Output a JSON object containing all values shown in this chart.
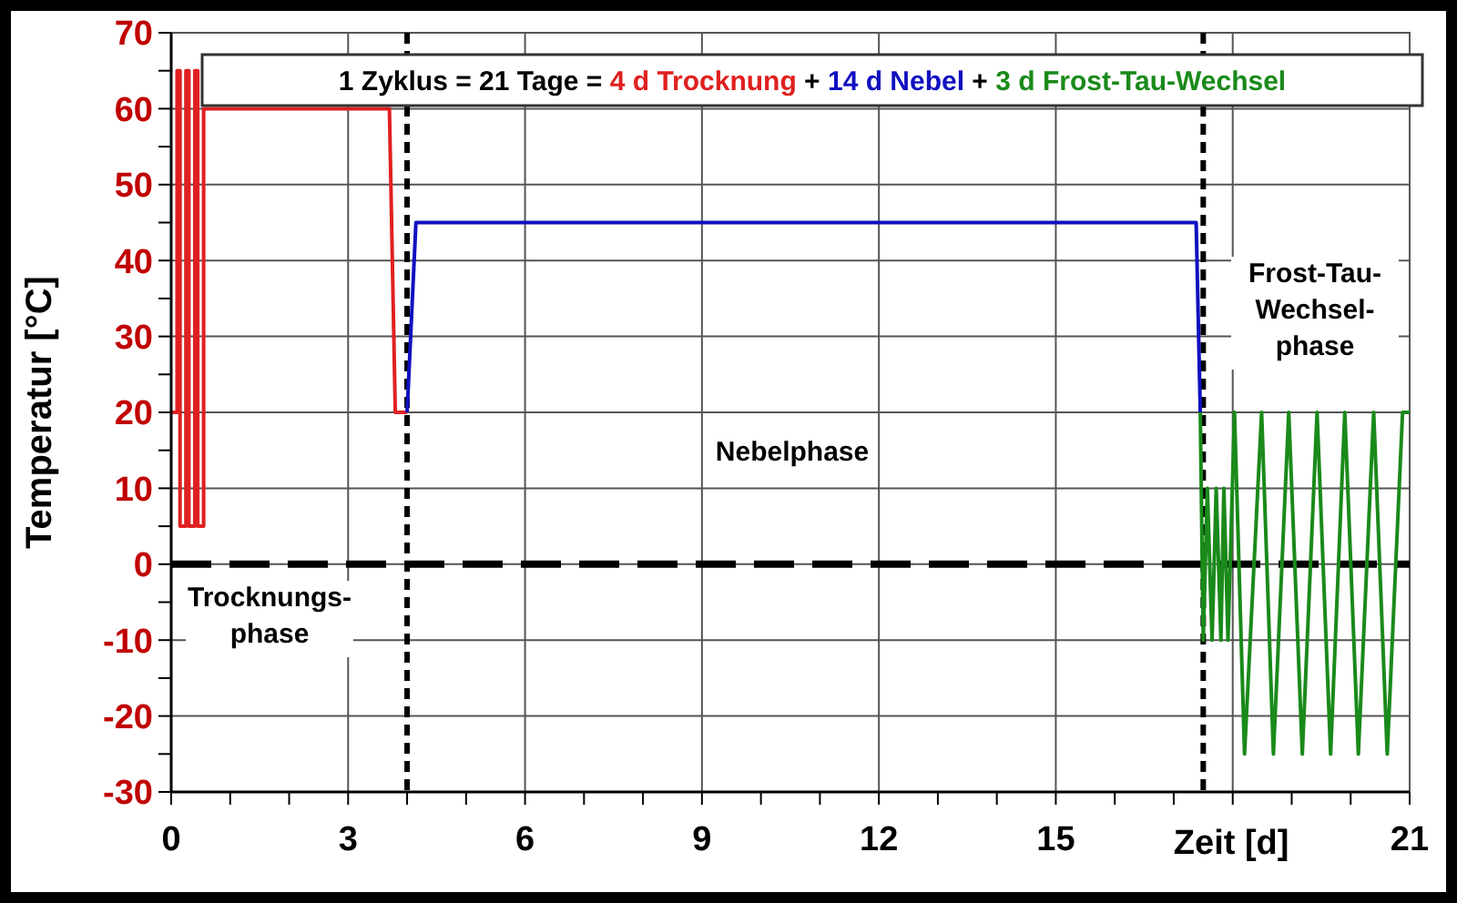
{
  "chart_data": {
    "type": "line",
    "xlabel": "Zeit [d]",
    "ylabel": "Temperatur [°C]",
    "legend_title": "1 Zyklus = 21 Tage =",
    "legend": "top",
    "grid": true,
    "line_style": "solid",
    "marker": "none",
    "xlim": [
      0,
      21
    ],
    "ylim": [
      -30,
      70
    ],
    "xticks": [
      0,
      {
        "value": 1,
        "label": null
      },
      {
        "value": 2,
        "label": null
      },
      3,
      {
        "value": 4,
        "label": null
      },
      {
        "value": 5,
        "label": null
      },
      6,
      {
        "value": 7,
        "label": null
      },
      {
        "value": 8,
        "label": null
      },
      9,
      {
        "value": 10,
        "label": null
      },
      {
        "value": 11,
        "label": null
      },
      12,
      {
        "value": 13,
        "label": null
      },
      {
        "value": 14,
        "label": null
      },
      15,
      {
        "value": 16,
        "label": null
      },
      {
        "value": 17,
        "label": null
      },
      {
        "value": 18,
        "label": null
      },
      {
        "value": 19,
        "label": null
      },
      {
        "value": 20,
        "label": null
      },
      21
    ],
    "yticks": [
      -30,
      {
        "value": -25,
        "label": null
      },
      -20,
      {
        "value": -15,
        "label": null
      },
      -10,
      {
        "value": -5,
        "label": null
      },
      0,
      {
        "value": 5,
        "label": null
      },
      10,
      {
        "value": 15,
        "label": null
      },
      20,
      {
        "value": 25,
        "label": null
      },
      30,
      {
        "value": 35,
        "label": null
      },
      40,
      {
        "value": 45,
        "label": null
      },
      50,
      {
        "value": 55,
        "label": null
      },
      60,
      {
        "value": 65,
        "label": null
      },
      70
    ],
    "series": [
      {
        "name": "4 d Trocknung",
        "color": "#e02020",
        "x": [
          0,
          0.1,
          0.1,
          0.15,
          0.15,
          0.25,
          0.25,
          0.3,
          0.3,
          0.4,
          0.4,
          0.45,
          0.45,
          0.55,
          0.55,
          3.7,
          3.8,
          4.0
        ],
        "values": [
          20,
          20,
          65,
          65,
          5,
          5,
          65,
          65,
          5,
          5,
          65,
          65,
          5,
          5,
          60,
          60,
          20,
          20
        ]
      },
      {
        "name": "14 d Nebel",
        "color": "#1010c0",
        "x": [
          4.0,
          4.15,
          17.38,
          17.45
        ],
        "values": [
          20,
          45,
          45,
          20
        ]
      },
      {
        "name": "3 d Frost-Tau-Wechsel",
        "color": "#1a8a1a",
        "x": [
          17.45,
          17.5,
          17.57,
          17.65,
          17.72,
          17.8,
          17.85,
          17.92,
          18.03,
          18.2,
          18.49,
          18.69,
          18.95,
          19.18,
          19.43,
          19.66,
          19.9,
          20.13,
          20.39,
          20.62,
          20.88,
          21
        ],
        "values": [
          20,
          -10,
          10,
          -10,
          10,
          -10,
          10,
          -10,
          20,
          -25,
          20,
          -25,
          20,
          -25,
          20,
          -25,
          20,
          -25,
          20,
          -25,
          20,
          20
        ]
      }
    ],
    "ref_lines": [
      {
        "axis": "x",
        "value": 4,
        "color": "#000000",
        "line_style": "dashed"
      },
      {
        "axis": "x",
        "value": 17.5,
        "color": "#000000",
        "line_style": "dashed"
      },
      {
        "axis": "y",
        "value": 0,
        "color": "#000000",
        "line_style": "dashed"
      }
    ],
    "annotations": [
      "Trocknungs-\nphase",
      "Nebelphase",
      "Frost-Tau-\nWechsel-\nphase",
      "+",
      "+"
    ]
  }
}
